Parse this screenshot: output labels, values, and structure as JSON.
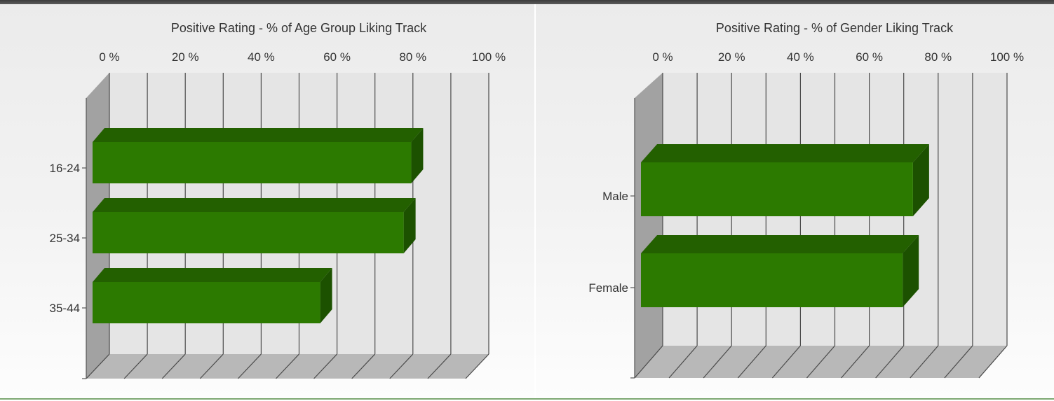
{
  "chart_data": [
    {
      "type": "bar",
      "orientation": "horizontal",
      "style": "3d",
      "title": "Positive Rating - % of Age Group Liking Track",
      "categories": [
        "16-24",
        "25-34",
        "35-44"
      ],
      "values": [
        84,
        82,
        60
      ],
      "x_ticks": [
        "0 %",
        "20 %",
        "40 %",
        "60 %",
        "80 %",
        "100 %"
      ],
      "xlim": [
        0,
        100
      ],
      "x_axis_position": "top",
      "grid": true,
      "bar_color": "#2c7a00",
      "bar_top_color": "#236000",
      "bar_side_color": "#1c5100"
    },
    {
      "type": "bar",
      "orientation": "horizontal",
      "style": "3d",
      "title": "Positive Rating - % of Gender Liking Track",
      "categories": [
        "Male",
        "Female"
      ],
      "values": [
        79,
        76
      ],
      "x_ticks": [
        "0 %",
        "20 %",
        "40 %",
        "60 %",
        "80 %",
        "100 %"
      ],
      "xlim": [
        0,
        100
      ],
      "x_axis_position": "top",
      "grid": true,
      "bar_color": "#2c7a00",
      "bar_top_color": "#236000",
      "bar_side_color": "#1c5100"
    }
  ]
}
